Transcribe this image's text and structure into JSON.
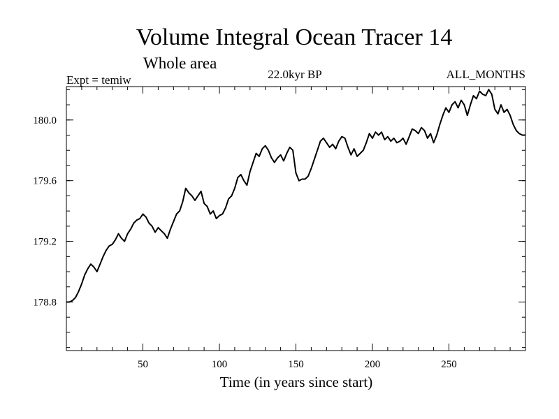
{
  "chart_data": {
    "type": "line",
    "title": "Volume Integral Ocean Tracer 14",
    "subtitle": "Whole area",
    "left_label": "Expt = temiw",
    "center_label": "22.0kyr BP",
    "right_label": "ALL_MONTHS",
    "xlabel": "Time (in years since start)",
    "ylabel": "",
    "xlim": [
      0,
      300
    ],
    "ylim": [
      178.48,
      180.22
    ],
    "x_ticks": [
      50,
      100,
      150,
      200,
      250
    ],
    "y_ticks": [
      178.8,
      179.2,
      179.6,
      180.0
    ],
    "x_tick_labels": [
      "50",
      "100",
      "150",
      "200",
      "250"
    ],
    "y_tick_labels": [
      "178.8",
      "179.2",
      "179.6",
      "180.0"
    ],
    "grid": false,
    "line_color": "#000000",
    "series": [
      {
        "x": [
          0,
          2,
          4,
          6,
          8,
          10,
          12,
          14,
          16,
          18,
          20,
          22,
          24,
          26,
          28,
          30,
          32,
          34,
          36,
          38,
          40,
          42,
          44,
          46,
          48,
          50,
          52,
          54,
          56,
          58,
          60,
          62,
          64,
          66,
          68,
          70,
          72,
          74,
          76,
          78,
          80,
          82,
          84,
          86,
          88,
          90,
          92,
          94,
          96,
          98,
          100,
          102,
          104,
          106,
          108,
          110,
          112,
          114,
          116,
          118,
          120,
          122,
          124,
          126,
          128,
          130,
          132,
          134,
          136,
          138,
          140,
          142,
          144,
          146,
          148,
          150,
          152,
          154,
          156,
          158,
          160,
          162,
          164,
          166,
          168,
          170,
          172,
          174,
          176,
          178,
          180,
          182,
          184,
          186,
          188,
          190,
          192,
          194,
          196,
          198,
          200,
          202,
          204,
          206,
          208,
          210,
          212,
          214,
          216,
          218,
          220,
          222,
          224,
          226,
          228,
          230,
          232,
          234,
          236,
          238,
          240,
          242,
          244,
          246,
          248,
          250,
          252,
          254,
          256,
          258,
          260,
          262,
          264,
          266,
          268,
          270,
          272,
          274,
          276,
          278,
          280,
          282,
          284,
          286,
          288,
          290,
          292,
          294,
          296,
          298,
          300
        ],
        "values": [
          178.8,
          178.8,
          178.81,
          178.83,
          178.87,
          178.92,
          178.98,
          179.02,
          179.05,
          179.03,
          179.0,
          179.05,
          179.1,
          179.14,
          179.17,
          179.18,
          179.21,
          179.25,
          179.22,
          179.2,
          179.25,
          179.28,
          179.32,
          179.34,
          179.35,
          179.38,
          179.36,
          179.32,
          179.3,
          179.26,
          179.29,
          179.27,
          179.25,
          179.22,
          179.28,
          179.33,
          179.38,
          179.4,
          179.46,
          179.55,
          179.52,
          179.5,
          179.47,
          179.5,
          179.53,
          179.45,
          179.43,
          179.38,
          179.4,
          179.35,
          179.37,
          179.38,
          179.42,
          179.48,
          179.5,
          179.55,
          179.62,
          179.64,
          179.6,
          179.57,
          179.66,
          179.72,
          179.78,
          179.76,
          179.81,
          179.83,
          179.8,
          179.75,
          179.72,
          179.75,
          179.77,
          179.73,
          179.78,
          179.82,
          179.8,
          179.65,
          179.6,
          179.61,
          179.61,
          179.63,
          179.68,
          179.74,
          179.8,
          179.86,
          179.88,
          179.85,
          179.82,
          179.84,
          179.81,
          179.86,
          179.89,
          179.88,
          179.82,
          179.77,
          179.81,
          179.76,
          179.78,
          179.8,
          179.85,
          179.91,
          179.88,
          179.92,
          179.9,
          179.92,
          179.87,
          179.89,
          179.86,
          179.88,
          179.85,
          179.86,
          179.88,
          179.84,
          179.89,
          179.94,
          179.93,
          179.91,
          179.95,
          179.93,
          179.88,
          179.91,
          179.85,
          179.9,
          179.97,
          180.03,
          180.08,
          180.05,
          180.1,
          180.12,
          180.08,
          180.13,
          180.1,
          180.03,
          180.1,
          180.16,
          180.14,
          180.19,
          180.17,
          180.16,
          180.2,
          180.17,
          180.07,
          180.04,
          180.1,
          180.05,
          180.07,
          180.03,
          179.97,
          179.93,
          179.91,
          179.9,
          179.9
        ]
      }
    ]
  }
}
